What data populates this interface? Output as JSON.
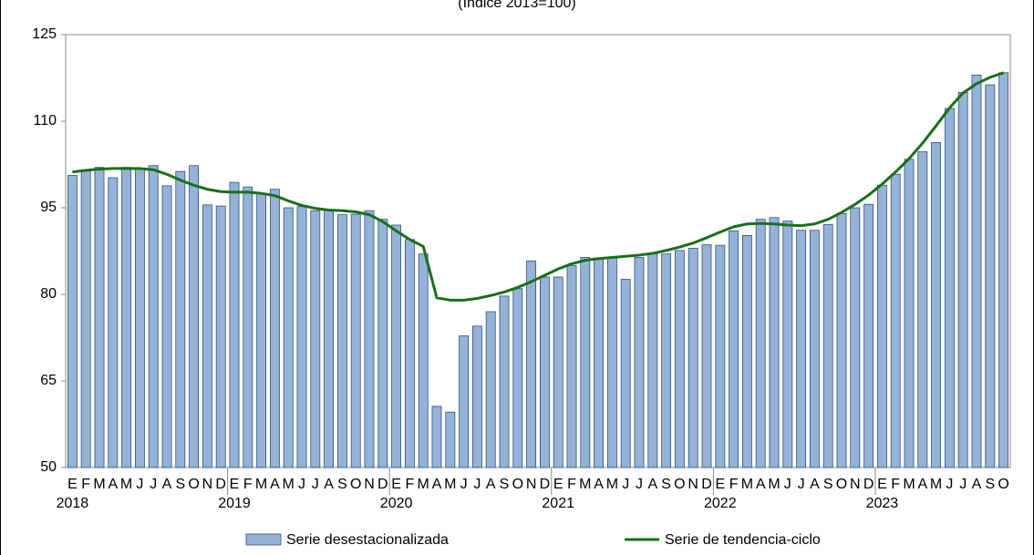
{
  "chart_data": {
    "type": "bar-line",
    "subtitle": "(Índice 2013=100)",
    "groups": [
      {
        "label": "2018",
        "months": [
          "E",
          "F",
          "M",
          "A",
          "M",
          "J",
          "J",
          "A",
          "S",
          "O",
          "N",
          "D"
        ]
      },
      {
        "label": "2019",
        "months": [
          "E",
          "F",
          "M",
          "A",
          "M",
          "J",
          "J",
          "A",
          "S",
          "O",
          "N",
          "D"
        ]
      },
      {
        "label": "2020",
        "months": [
          "E",
          "F",
          "M",
          "A",
          "M",
          "J",
          "J",
          "A",
          "S",
          "O",
          "N",
          "D"
        ]
      },
      {
        "label": "2021",
        "months": [
          "E",
          "F",
          "M",
          "A",
          "M",
          "J",
          "J",
          "A",
          "S",
          "O",
          "N",
          "D"
        ]
      },
      {
        "label": "2022",
        "months": [
          "E",
          "F",
          "M",
          "A",
          "M",
          "J",
          "J",
          "A",
          "S",
          "O",
          "N",
          "D"
        ]
      },
      {
        "label": "2023",
        "months": [
          "E",
          "F",
          "M",
          "A",
          "M",
          "J",
          "J",
          "A",
          "S",
          "O"
        ]
      }
    ],
    "series": [
      {
        "name": "Serie desestacionalizada",
        "kind": "bar",
        "color": "#95b3d7",
        "stroke": "#2f4f7f",
        "values": [
          100.6,
          101.5,
          102.0,
          100.2,
          102.0,
          101.8,
          102.3,
          98.8,
          101.3,
          102.3,
          95.5,
          95.3,
          99.4,
          98.6,
          97.5,
          98.2,
          95.0,
          95.2,
          94.5,
          94.7,
          93.8,
          93.9,
          94.5,
          93.0,
          92.0,
          89.5,
          87.0,
          60.6,
          59.6,
          72.8,
          74.5,
          77.0,
          79.7,
          81.0,
          85.8,
          83.0,
          83.0,
          85.0,
          86.4,
          86.3,
          86.3,
          82.6,
          86.4,
          87.0,
          87.0,
          87.6,
          88.0,
          88.6,
          88.5,
          91.0,
          90.2,
          93.0,
          93.3,
          92.7,
          91.1,
          91.1,
          92.1,
          94.0,
          95.0,
          95.6,
          98.9,
          100.8,
          103.4,
          104.7,
          106.3,
          112.2,
          115.0,
          118.0,
          116.3,
          118.4
        ]
      },
      {
        "name": "Serie de tendencia-ciclo",
        "kind": "line",
        "color": "#1a6e1a",
        "values": [
          101.2,
          101.5,
          101.7,
          101.8,
          101.8,
          101.8,
          101.6,
          100.8,
          99.8,
          98.9,
          98.2,
          97.8,
          97.7,
          97.7,
          97.5,
          97.1,
          96.2,
          95.4,
          94.9,
          94.6,
          94.5,
          94.3,
          93.8,
          92.6,
          91.0,
          89.5,
          88.3,
          79.4,
          79.0,
          79.0,
          79.3,
          79.8,
          80.4,
          81.2,
          82.2,
          83.3,
          84.4,
          85.3,
          85.9,
          86.2,
          86.4,
          86.6,
          86.8,
          87.1,
          87.6,
          88.2,
          88.9,
          89.8,
          90.8,
          91.7,
          92.2,
          92.3,
          92.2,
          92.0,
          91.9,
          92.2,
          93.0,
          94.2,
          95.6,
          97.2,
          99.1,
          101.2,
          103.5,
          106.2,
          109.2,
          112.3,
          114.9,
          116.5,
          117.6,
          118.4
        ]
      }
    ],
    "ylim": [
      50,
      125
    ],
    "yticks": [
      50,
      65,
      80,
      95,
      110,
      125
    ],
    "grid": false
  }
}
